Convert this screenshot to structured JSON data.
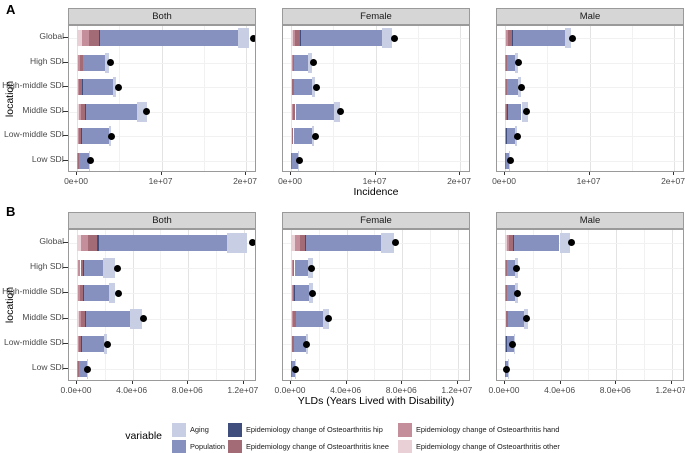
{
  "legend": {
    "title": "variable",
    "entries": [
      {
        "key": "aging",
        "label": "Aging",
        "color": "#c8cee4"
      },
      {
        "key": "population",
        "label": "Population",
        "color": "#8791bf"
      },
      {
        "key": "hip",
        "label": "Epidemiology change of Osteoarthritis hip",
        "color": "#3f4e7c"
      },
      {
        "key": "knee",
        "label": "Epidemiology change of Osteoarthritis knee",
        "color": "#a36b75"
      },
      {
        "key": "hand",
        "label": "Epidemiology change of Osteoarthritis hand",
        "color": "#c48f9b"
      },
      {
        "key": "other",
        "label": "Epidemiology change of Osteoarthritis other",
        "color": "#e9d0d7"
      }
    ],
    "columns": [
      [
        0,
        1
      ],
      [
        2,
        3
      ],
      [
        4,
        5
      ]
    ]
  },
  "chart_data": {
    "type": "bar",
    "orientation": "horizontal",
    "stacked": true,
    "grid": true,
    "dot_meaning": "net change (black point)",
    "categories": [
      "Global",
      "High SDI",
      "High-middle SDI",
      "Middle SDI",
      "Low-middle SDI",
      "Low SDI"
    ],
    "stack_order": [
      "other",
      "hand",
      "knee",
      "hip",
      "population",
      "aging"
    ],
    "colors": {
      "aging": "#c8cee4",
      "population": "#8791bf",
      "hip": "#3f4e7c",
      "knee": "#a36b75",
      "hand": "#c48f9b",
      "other": "#e9d0d7"
    },
    "rows": [
      {
        "tag": "A",
        "xlabel": "Incidence",
        "ylabel": "location",
        "xlim": [
          0,
          21300000
        ],
        "ticks": [
          {
            "value": 0,
            "label": "0e+00"
          },
          {
            "value": 10000000,
            "label": "1e+07"
          },
          {
            "value": 20000000,
            "label": "2e+07"
          }
        ],
        "minor_ticks": [
          5000000,
          15000000
        ],
        "panels": [
          {
            "title": "Both",
            "bars": [
              {
                "segments": {
                  "other": 600000,
                  "hand": 850000,
                  "knee": 1150000,
                  "hip": 100000,
                  "population": 16400000,
                  "aging": 1300000
                },
                "dot": 20900000
              },
              {
                "segments": {
                  "other": 150000,
                  "hand": 200000,
                  "knee": 300000,
                  "hip": 50000,
                  "population": 2600000,
                  "aging": 450000
                },
                "dot": 3950000
              },
              {
                "segments": {
                  "other": 120000,
                  "hand": 150000,
                  "knee": 330000,
                  "hip": 50000,
                  "population": 3600000,
                  "aging": 350000
                },
                "dot": 4900000
              },
              {
                "segments": {
                  "other": 200000,
                  "hand": 250000,
                  "knee": 450000,
                  "hip": 100000,
                  "population": 6100000,
                  "aging": 1200000
                },
                "dot": 8250000
              },
              {
                "segments": {
                  "other": 100000,
                  "hand": 120000,
                  "knee": 280000,
                  "hip": 40000,
                  "population": 3200000,
                  "aging": 260000
                },
                "dot": 4100000
              },
              {
                "segments": {
                  "other": 40000,
                  "hand": 50000,
                  "knee": 100000,
                  "hip": 20000,
                  "population": 1200000,
                  "aging": 120000
                },
                "dot": 1600000
              }
            ]
          },
          {
            "title": "Female",
            "bars": [
              {
                "segments": {
                  "other": 200000,
                  "hand": 300000,
                  "knee": 600000,
                  "hip": 100000,
                  "population": 9600000,
                  "aging": 1200000
                },
                "dot": 12200000
              },
              {
                "segments": {
                  "other": 80000,
                  "hand": 100000,
                  "knee": 170000,
                  "hip": 30000,
                  "population": 1670000,
                  "aging": 450000
                },
                "dot": 2600000
              },
              {
                "segments": {
                  "other": 60000,
                  "hand": 80000,
                  "knee": 200000,
                  "hip": 30000,
                  "population": 2130000,
                  "aging": 350000
                },
                "dot": 3000000
              },
              {
                "segments": {
                  "other": 100000,
                  "hand": 130000,
                  "knee": 300000,
                  "hip": 50000,
                  "population": 4500000,
                  "aging": 700000
                },
                "dot": 5900000
              },
              {
                "segments": {
                  "other": 60000,
                  "hand": 70000,
                  "knee": 170000,
                  "hip": 20000,
                  "population": 2200000,
                  "aging": 200000
                },
                "dot": 2850000
              },
              {
                "segments": {
                  "other": 20000,
                  "hand": 30000,
                  "knee": 60000,
                  "hip": 10000,
                  "population": 750000,
                  "aging": 80000
                },
                "dot": 1000000
              }
            ]
          },
          {
            "title": "Male",
            "bars": [
              {
                "segments": {
                  "other": 150000,
                  "hand": 200000,
                  "knee": 500000,
                  "hip": 100000,
                  "population": 6100000,
                  "aging": 750000
                },
                "dot": 8000000
              },
              {
                "segments": {
                  "other": 40000,
                  "hand": 50000,
                  "knee": 100000,
                  "hip": 20000,
                  "population": 1000000,
                  "aging": 350000
                },
                "dot": 1650000
              },
              {
                "segments": {
                  "other": 40000,
                  "hand": 50000,
                  "knee": 120000,
                  "hip": 20000,
                  "population": 1350000,
                  "aging": 300000
                },
                "dot": 2000000
              },
              {
                "segments": {
                  "other": 50000,
                  "hand": 70000,
                  "knee": 150000,
                  "hip": 30000,
                  "population": 1650000,
                  "aging": 800000
                },
                "dot": 2500000
              },
              {
                "segments": {
                  "other": 30000,
                  "hand": 40000,
                  "knee": 100000,
                  "hip": 20000,
                  "population": 950000,
                  "aging": 250000
                },
                "dot": 1450000
              },
              {
                "segments": {
                  "other": 10000,
                  "hand": 20000,
                  "knee": 40000,
                  "hip": 10000,
                  "population": 420000,
                  "aging": 50000
                },
                "dot": 600000
              }
            ]
          }
        ]
      },
      {
        "tag": "B",
        "xlabel": "YLDs (Years Lived with Disability)",
        "ylabel": "location",
        "xlim": [
          0,
          12950000
        ],
        "ticks": [
          {
            "value": 0,
            "label": "0.0e+00"
          },
          {
            "value": 4000000,
            "label": "4.0e+06"
          },
          {
            "value": 8000000,
            "label": "8.0e+06"
          },
          {
            "value": 12000000,
            "label": "1.2e+07"
          }
        ],
        "minor_ticks": [
          2000000,
          6000000,
          10000000
        ],
        "panels": [
          {
            "title": "Both",
            "bars": [
              {
                "segments": {
                  "other": 300000,
                  "hand": 500000,
                  "knee": 650000,
                  "hip": 100000,
                  "population": 9250000,
                  "aging": 1400000
                },
                "dot": 12600000
              },
              {
                "segments": {
                  "other": 100000,
                  "hand": 150000,
                  "knee": 200000,
                  "hip": 50000,
                  "population": 1400000,
                  "aging": 850000
                },
                "dot": 2900000
              },
              {
                "segments": {
                  "other": 80000,
                  "hand": 120000,
                  "knee": 220000,
                  "hip": 50000,
                  "population": 1800000,
                  "aging": 500000
                },
                "dot": 2950000
              },
              {
                "segments": {
                  "other": 120000,
                  "hand": 180000,
                  "knee": 280000,
                  "hip": 60000,
                  "population": 3200000,
                  "aging": 850000
                },
                "dot": 4750000
              },
              {
                "segments": {
                  "other": 60000,
                  "hand": 90000,
                  "knee": 150000,
                  "hip": 30000,
                  "population": 1600000,
                  "aging": 200000
                },
                "dot": 2200000
              },
              {
                "segments": {
                  "other": 20000,
                  "hand": 30000,
                  "knee": 60000,
                  "hip": 10000,
                  "population": 580000,
                  "aging": 80000
                },
                "dot": 720000
              }
            ]
          },
          {
            "title": "Female",
            "bars": [
              {
                "segments": {
                  "other": 300000,
                  "hand": 370000,
                  "knee": 350000,
                  "hip": 60000,
                  "population": 5420000,
                  "aging": 900000
                },
                "dot": 7550000
              },
              {
                "segments": {
                  "other": 50000,
                  "hand": 80000,
                  "knee": 120000,
                  "hip": 30000,
                  "population": 920000,
                  "aging": 360000
                },
                "dot": 1500000
              },
              {
                "segments": {
                  "other": 40000,
                  "hand": 70000,
                  "knee": 130000,
                  "hip": 30000,
                  "population": 1050000,
                  "aging": 250000
                },
                "dot": 1550000
              },
              {
                "segments": {
                  "other": 70000,
                  "hand": 100000,
                  "knee": 170000,
                  "hip": 40000,
                  "population": 1900000,
                  "aging": 480000
                },
                "dot": 2700000
              },
              {
                "segments": {
                  "other": 40000,
                  "hand": 50000,
                  "knee": 100000,
                  "hip": 20000,
                  "population": 870000,
                  "aging": 120000
                },
                "dot": 1100000
              },
              {
                "segments": {
                  "other": 10000,
                  "hand": 20000,
                  "knee": 30000,
                  "hip": 10000,
                  "population": 250000,
                  "aging": 40000
                },
                "dot": 300000
              }
            ]
          },
          {
            "title": "Male",
            "bars": [
              {
                "segments": {
                  "other": 120000,
                  "hand": 200000,
                  "knee": 250000,
                  "hip": 50000,
                  "population": 3300000,
                  "aging": 780000
                },
                "dot": 4800000
              },
              {
                "segments": {
                  "other": 20000,
                  "hand": 40000,
                  "knee": 60000,
                  "hip": 20000,
                  "population": 560000,
                  "aging": 240000
                },
                "dot": 850000
              },
              {
                "segments": {
                  "other": 20000,
                  "hand": 40000,
                  "knee": 70000,
                  "hip": 20000,
                  "population": 590000,
                  "aging": 170000
                },
                "dot": 880000
              },
              {
                "segments": {
                  "other": 40000,
                  "hand": 60000,
                  "knee": 100000,
                  "hip": 30000,
                  "population": 1110000,
                  "aging": 310000
                },
                "dot": 1550000
              },
              {
                "segments": {
                  "other": 20000,
                  "hand": 30000,
                  "knee": 50000,
                  "hip": 10000,
                  "population": 510000,
                  "aging": 120000
                },
                "dot": 550000
              },
              {
                "segments": {
                  "other": 10000,
                  "hand": 10000,
                  "knee": 20000,
                  "hip": 10000,
                  "population": 150000,
                  "aging": 30000
                },
                "dot": 120000
              }
            ]
          }
        ]
      }
    ]
  }
}
